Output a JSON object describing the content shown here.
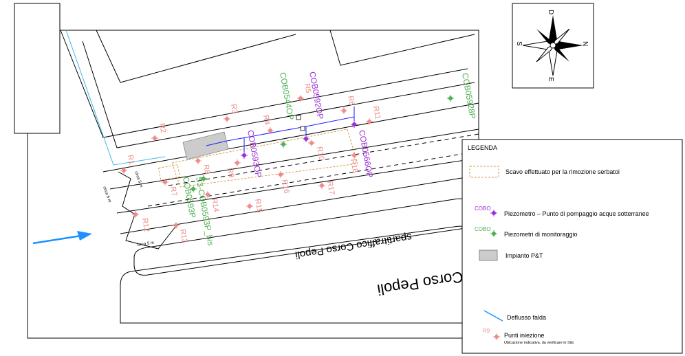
{
  "north_arrow": {
    "top": "D",
    "left": "S",
    "right": "N",
    "bottom": "E"
  },
  "street_labels": {
    "median": "spartitraffico Corso Pepoli",
    "street": "Corso Pepoli"
  },
  "dimension_labels": [
    "circa 5 m",
    "circa 5 m",
    "circa 5 m"
  ],
  "injection_points": [
    "R1",
    "R2",
    "R3",
    "R4",
    "R5",
    "R6",
    "R7",
    "R8",
    "R9",
    "R10",
    "R11",
    "R12",
    "R13",
    "R14",
    "R15",
    "R16",
    "R17",
    "R18"
  ],
  "pumping_piezometers": [
    "COB0593OP",
    "COB0592OP",
    "COB0566OP"
  ],
  "monitoring_piezometers": [
    "COB05928P",
    "COB0544OP",
    "COB0593P",
    "S3-COB0593P_bis"
  ],
  "legend": {
    "title": "LEGENDA",
    "excavation": "Scavo effettuato per la rimozione serbatoi",
    "pumping_code": "COBO",
    "pumping": "Piezometro – Punto di pompaggio acque sotterranee",
    "monitoring_code": "COBO",
    "monitoring": "Piezometri di monitoraggio",
    "plant": "Impianto P&T",
    "flow": "Deflusso falda",
    "injection_code": "R9",
    "injection": "Punti iniezione",
    "injection_note": "Ubicazione indicativa, da verificare in Sito"
  },
  "colors": {
    "injection": "#f08a8a",
    "pumping": "#9b30d9",
    "monitoring": "#4caf50",
    "flow_arrow": "#1e90ff",
    "excavation": "#d4a24c",
    "pipe": "#1a1aff",
    "plant": "#cccccc"
  }
}
